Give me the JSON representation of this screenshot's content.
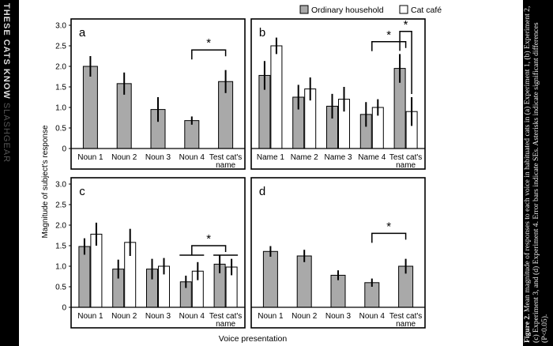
{
  "watermark": {
    "brand": "SLASHGEAR",
    "headline": "THESE CATS KNOW"
  },
  "colors": {
    "ordinary": "#a9a9a9",
    "cafe": "#ffffff",
    "background": "#000000",
    "panel": "#ffffff"
  },
  "legend": [
    {
      "name": "Ordinary household",
      "color": "#a9a9a9"
    },
    {
      "name": "Cat café",
      "color": "#ffffff"
    }
  ],
  "axes": {
    "ylabel": "Magnitude of subject's response",
    "xlabel": "Voice presentation",
    "ylim": [
      0,
      3.0
    ],
    "yticks": [
      "0",
      "0.5",
      "1.0",
      "1.5",
      "2.0",
      "2.5",
      "3.0"
    ]
  },
  "chart_data": [
    {
      "type": "bar",
      "panel": "a",
      "categories": [
        "Noun 1",
        "Noun 2",
        "Noun 3",
        "Noun 4",
        "Test cat's name"
      ],
      "series": [
        {
          "name": "Ordinary household",
          "values": [
            2.0,
            1.58,
            0.95,
            0.68,
            1.63
          ],
          "errors": [
            0.25,
            0.27,
            0.3,
            0.1,
            0.28
          ]
        }
      ],
      "ylim": [
        0,
        3.0
      ],
      "significance": [
        {
          "from": 3,
          "to": 4,
          "height": 2.4,
          "label": "*"
        }
      ]
    },
    {
      "type": "bar",
      "panel": "b",
      "categories": [
        "Name 1",
        "Name 2",
        "Name 3",
        "Name 4",
        "Test cat's name"
      ],
      "series": [
        {
          "name": "Ordinary household",
          "values": [
            1.78,
            1.25,
            1.03,
            0.83,
            1.95
          ],
          "errors": [
            0.35,
            0.3,
            0.3,
            0.3,
            0.35
          ]
        },
        {
          "name": "Cat café",
          "values": [
            2.5,
            1.45,
            1.2,
            1.0,
            0.9
          ],
          "errors": [
            0.2,
            0.28,
            0.3,
            0.2,
            0.35
          ]
        }
      ],
      "ylim": [
        0,
        3.0
      ],
      "significance": [
        {
          "from": 3,
          "to": 4,
          "height": 2.6,
          "label": "*"
        },
        {
          "from": 4,
          "to": 4,
          "height": 2.85,
          "label": "*"
        }
      ]
    },
    {
      "type": "bar",
      "panel": "c",
      "categories": [
        "Noun 1",
        "Noun 2",
        "Noun 3",
        "Noun 4",
        "Test cat's name"
      ],
      "series": [
        {
          "name": "Ordinary household",
          "values": [
            1.48,
            0.93,
            0.93,
            0.62,
            1.05
          ],
          "errors": [
            0.2,
            0.23,
            0.25,
            0.15,
            0.22
          ]
        },
        {
          "name": "Cat café",
          "values": [
            1.78,
            1.58,
            1.0,
            0.88,
            0.98
          ],
          "errors": [
            0.28,
            0.33,
            0.2,
            0.22,
            0.2
          ]
        }
      ],
      "ylim": [
        0,
        3.0
      ],
      "significance": [
        {
          "from": 3,
          "to": 4,
          "height": 1.5,
          "label": "*"
        }
      ]
    },
    {
      "type": "bar",
      "panel": "d",
      "categories": [
        "Noun 1",
        "Noun 2",
        "Noun 3",
        "Noun 4",
        "Test cat's name"
      ],
      "series": [
        {
          "name": "Ordinary household",
          "values": [
            1.36,
            1.25,
            0.78,
            0.6,
            1.0
          ],
          "errors": [
            0.13,
            0.15,
            0.12,
            0.1,
            0.18
          ]
        }
      ],
      "ylim": [
        0,
        3.0
      ],
      "significance": [
        {
          "from": 3,
          "to": 4,
          "height": 1.8,
          "label": "*"
        }
      ]
    }
  ],
  "caption": {
    "label": "Figure 2.",
    "text": "Mean magnitude of responses to each voice in habituated cats in (a) Experiment 1, (b) Experiment 2, (c) Experiment 3, and (d) Experiment 4. Error bars indicate SEs. Asterisks indicate significant differences (P<0.05)."
  }
}
